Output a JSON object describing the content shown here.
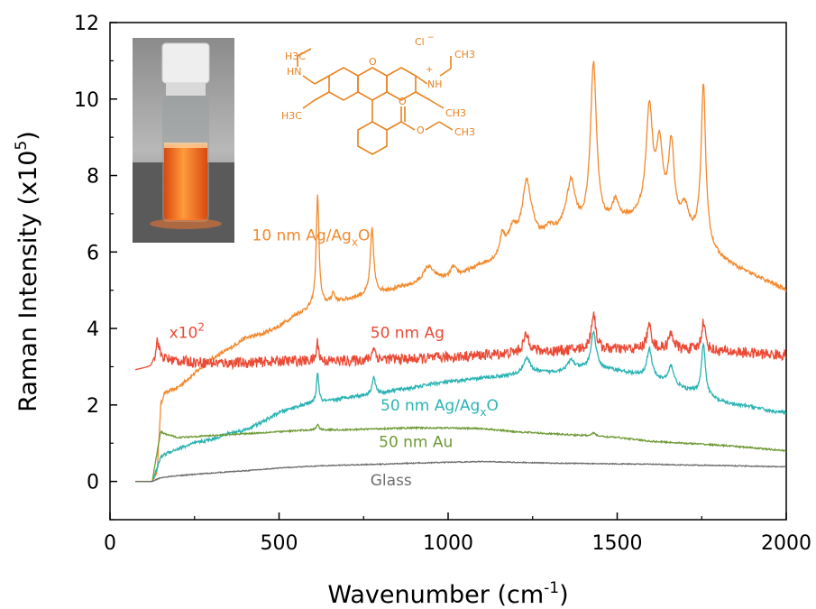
{
  "chart_data": {
    "type": "line",
    "xlabel": {
      "main": "Wavenumber (cm",
      "sup": "-1",
      "end": ")"
    },
    "ylabel": {
      "main": "Raman Intensity (x10",
      "sup": "5",
      "end": ")"
    },
    "xlim": [
      0,
      2000
    ],
    "ylim": [
      -1,
      12
    ],
    "xticks": [
      0,
      500,
      1000,
      1500,
      2000
    ],
    "yticks": [
      0,
      2,
      4,
      6,
      8,
      10,
      12
    ],
    "grid": false,
    "legend": "none",
    "series": [
      {
        "name": "10 nm Ag/AgxO",
        "color": "#f28a2e",
        "label_parts": [
          "10 nm Ag/Ag",
          "x",
          "O"
        ],
        "label_at": [
          420,
          6.3
        ],
        "baseline": [
          [
            75,
            0
          ],
          [
            125,
            0
          ],
          [
            140,
            0.3
          ],
          [
            150,
            2.0
          ],
          [
            160,
            2.3
          ],
          [
            200,
            2.45
          ],
          [
            260,
            2.9
          ],
          [
            300,
            3.2
          ],
          [
            350,
            3.45
          ],
          [
            400,
            3.75
          ],
          [
            450,
            3.85
          ],
          [
            500,
            4.05
          ],
          [
            550,
            4.35
          ],
          [
            600,
            4.55
          ],
          [
            650,
            4.65
          ],
          [
            700,
            4.75
          ],
          [
            750,
            4.85
          ],
          [
            800,
            4.95
          ],
          [
            850,
            5.05
          ],
          [
            900,
            5.15
          ],
          [
            950,
            5.35
          ],
          [
            1000,
            5.3
          ],
          [
            1050,
            5.45
          ],
          [
            1100,
            5.65
          ],
          [
            1150,
            5.75
          ],
          [
            1200,
            6.1
          ],
          [
            1250,
            6.4
          ],
          [
            1300,
            6.2
          ],
          [
            1350,
            6.7
          ],
          [
            1400,
            6.55
          ],
          [
            1450,
            6.6
          ],
          [
            1500,
            6.75
          ],
          [
            1550,
            6.85
          ],
          [
            1600,
            7.1
          ],
          [
            1650,
            6.8
          ],
          [
            1700,
            6.5
          ],
          [
            1750,
            6.3
          ],
          [
            1800,
            5.85
          ],
          [
            1850,
            5.6
          ],
          [
            1900,
            5.4
          ],
          [
            1950,
            5.2
          ],
          [
            2000,
            5.0
          ]
        ],
        "peaks": [
          [
            614,
            2.9,
            5
          ],
          [
            660,
            0.25,
            6
          ],
          [
            775,
            1.7,
            6
          ],
          [
            940,
            0.3,
            15
          ],
          [
            1015,
            0.25,
            10
          ],
          [
            1160,
            0.55,
            10
          ],
          [
            1190,
            0.5,
            15
          ],
          [
            1232,
            1.5,
            15
          ],
          [
            1300,
            0.4,
            15
          ],
          [
            1364,
            1.1,
            14
          ],
          [
            1430,
            4.3,
            11
          ],
          [
            1495,
            0.5,
            12
          ],
          [
            1595,
            2.6,
            11
          ],
          [
            1625,
            1.7,
            11
          ],
          [
            1660,
            2.0,
            10
          ],
          [
            1700,
            0.6,
            12
          ],
          [
            1755,
            4.1,
            8
          ]
        ]
      },
      {
        "name": "50 nm Ag",
        "color": "#ea4a35",
        "label_parts": [
          "50 nm Ag"
        ],
        "label_at": [
          770,
          3.75
        ],
        "baseline": [
          [
            75,
            2.92
          ],
          [
            120,
            3.0
          ],
          [
            140,
            3.25
          ],
          [
            160,
            3.2
          ],
          [
            200,
            3.15
          ],
          [
            300,
            3.1
          ],
          [
            400,
            3.1
          ],
          [
            500,
            3.15
          ],
          [
            600,
            3.15
          ],
          [
            700,
            3.15
          ],
          [
            800,
            3.2
          ],
          [
            900,
            3.2
          ],
          [
            1000,
            3.25
          ],
          [
            1100,
            3.3
          ],
          [
            1200,
            3.35
          ],
          [
            1300,
            3.4
          ],
          [
            1400,
            3.45
          ],
          [
            1500,
            3.45
          ],
          [
            1600,
            3.45
          ],
          [
            1700,
            3.45
          ],
          [
            1800,
            3.4
          ],
          [
            1900,
            3.35
          ],
          [
            2000,
            3.3
          ]
        ],
        "peaks": [
          [
            140,
            0.45,
            6
          ],
          [
            614,
            0.5,
            4
          ],
          [
            780,
            0.35,
            5
          ],
          [
            1232,
            0.45,
            12
          ],
          [
            1430,
            0.95,
            8
          ],
          [
            1595,
            0.6,
            9
          ],
          [
            1660,
            0.4,
            9
          ],
          [
            1755,
            0.75,
            7
          ]
        ]
      },
      {
        "name": "50 nm Ag/AgxO",
        "color": "#2bb3b3",
        "label_parts": [
          "50 nm Ag/Ag",
          "x",
          "O"
        ],
        "label_at": [
          800,
          1.85
        ],
        "baseline": [
          [
            75,
            0
          ],
          [
            125,
            0
          ],
          [
            140,
            0.35
          ],
          [
            150,
            0.65
          ],
          [
            170,
            0.75
          ],
          [
            200,
            0.85
          ],
          [
            250,
            1.0
          ],
          [
            300,
            1.1
          ],
          [
            350,
            1.25
          ],
          [
            400,
            1.35
          ],
          [
            450,
            1.55
          ],
          [
            500,
            1.8
          ],
          [
            550,
            1.95
          ],
          [
            600,
            2.05
          ],
          [
            650,
            2.1
          ],
          [
            700,
            2.2
          ],
          [
            750,
            2.25
          ],
          [
            800,
            2.3
          ],
          [
            850,
            2.4
          ],
          [
            900,
            2.45
          ],
          [
            950,
            2.55
          ],
          [
            1000,
            2.6
          ],
          [
            1050,
            2.65
          ],
          [
            1100,
            2.7
          ],
          [
            1150,
            2.75
          ],
          [
            1200,
            2.78
          ],
          [
            1250,
            2.85
          ],
          [
            1300,
            2.85
          ],
          [
            1350,
            2.9
          ],
          [
            1400,
            2.95
          ],
          [
            1450,
            2.95
          ],
          [
            1500,
            2.9
          ],
          [
            1550,
            2.8
          ],
          [
            1600,
            2.7
          ],
          [
            1650,
            2.6
          ],
          [
            1700,
            2.4
          ],
          [
            1750,
            2.3
          ],
          [
            1800,
            2.1
          ],
          [
            1850,
            2.0
          ],
          [
            1900,
            1.95
          ],
          [
            1950,
            1.85
          ],
          [
            2000,
            1.8
          ]
        ],
        "peaks": [
          [
            614,
            0.8,
            4
          ],
          [
            780,
            0.45,
            6
          ],
          [
            1232,
            0.4,
            12
          ],
          [
            1364,
            0.25,
            12
          ],
          [
            1430,
            0.95,
            9
          ],
          [
            1595,
            0.75,
            9
          ],
          [
            1660,
            0.45,
            9
          ],
          [
            1755,
            1.3,
            7
          ]
        ]
      },
      {
        "name": "50 nm Au",
        "color": "#6e9a35",
        "label_parts": [
          "50 nm Au"
        ],
        "label_at": [
          795,
          0.9
        ],
        "baseline": [
          [
            75,
            0
          ],
          [
            125,
            0
          ],
          [
            140,
            0.8
          ],
          [
            150,
            1.3
          ],
          [
            160,
            1.25
          ],
          [
            200,
            1.15
          ],
          [
            300,
            1.2
          ],
          [
            400,
            1.25
          ],
          [
            500,
            1.3
          ],
          [
            600,
            1.35
          ],
          [
            700,
            1.35
          ],
          [
            800,
            1.38
          ],
          [
            900,
            1.4
          ],
          [
            1000,
            1.4
          ],
          [
            1100,
            1.38
          ],
          [
            1200,
            1.3
          ],
          [
            1300,
            1.25
          ],
          [
            1400,
            1.2
          ],
          [
            1500,
            1.15
          ],
          [
            1600,
            1.05
          ],
          [
            1700,
            1.0
          ],
          [
            1800,
            0.95
          ],
          [
            1900,
            0.88
          ],
          [
            2000,
            0.8
          ]
        ],
        "peaks": [
          [
            614,
            0.15,
            4
          ],
          [
            1430,
            0.08,
            8
          ]
        ]
      },
      {
        "name": "Glass",
        "color": "#6d6d6d",
        "label_parts": [
          "Glass"
        ],
        "label_at": [
          770,
          -0.1
        ],
        "baseline": [
          [
            75,
            0
          ],
          [
            125,
            0
          ],
          [
            150,
            0.1
          ],
          [
            200,
            0.15
          ],
          [
            300,
            0.22
          ],
          [
            400,
            0.28
          ],
          [
            500,
            0.35
          ],
          [
            600,
            0.4
          ],
          [
            700,
            0.43
          ],
          [
            800,
            0.45
          ],
          [
            900,
            0.48
          ],
          [
            1000,
            0.5
          ],
          [
            1100,
            0.52
          ],
          [
            1200,
            0.5
          ],
          [
            1300,
            0.48
          ],
          [
            1400,
            0.47
          ],
          [
            1500,
            0.46
          ],
          [
            1600,
            0.45
          ],
          [
            1700,
            0.43
          ],
          [
            1800,
            0.42
          ],
          [
            1900,
            0.4
          ],
          [
            2000,
            0.38
          ]
        ],
        "peaks": []
      }
    ],
    "annotations": [
      {
        "text": "x10",
        "sup": "2",
        "color": "#ea4a35",
        "at": [
          175,
          3.75
        ]
      }
    ]
  },
  "inset": {
    "molecule_labels": {
      "ethyl_left": "H3C",
      "nh_left": "HN",
      "methyl_left": "H3C",
      "chloride": "Cl",
      "chloride_charge": "−",
      "methyl_top_right": "CH3",
      "nh_right": "NH",
      "plus": "+",
      "methyl_right": "CH3",
      "oxygen_ring": "O",
      "carbonyl_o": "O",
      "ester_o": "O",
      "methyl_ester": "CH3"
    },
    "colors": {
      "molecule": "#e8821e"
    }
  }
}
